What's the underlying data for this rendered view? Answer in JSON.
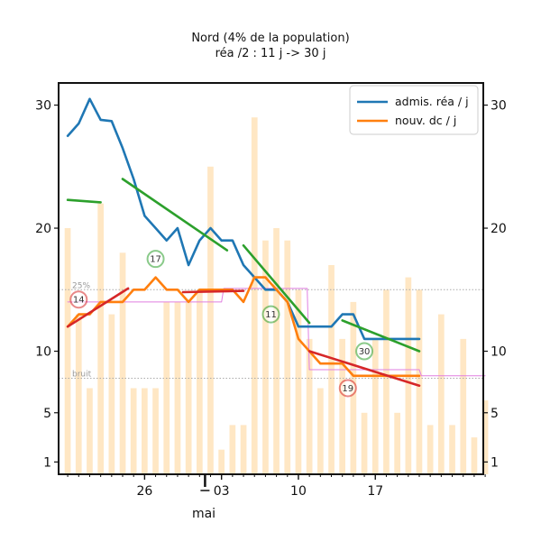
{
  "chart_data": {
    "type": "bar+line",
    "title": "Nord (4% de la population)",
    "subtitle": "réa /2 : 11 j -> 30 j",
    "xlabel": "mai",
    "x_day_range": [
      0,
      38
    ],
    "x_ticks": [
      {
        "day": 7,
        "label": "26"
      },
      {
        "day": 14,
        "label": "03"
      },
      {
        "day": 21,
        "label": "10"
      },
      {
        "day": 28,
        "label": "17"
      }
    ],
    "y_ticks": [
      {
        "value": 1,
        "label": "1"
      },
      {
        "value": 5,
        "label": "5"
      },
      {
        "value": 10,
        "label": "10"
      },
      {
        "value": 20,
        "label": "20"
      },
      {
        "value": 30,
        "label": "30"
      }
    ],
    "ylim": [
      0,
      31.8
    ],
    "bars": {
      "name": "daily values",
      "color": "#ffe7c4",
      "start_day": 0,
      "values": [
        20,
        13,
        7,
        22,
        13,
        18,
        7,
        7,
        7,
        14,
        14,
        14,
        15,
        25,
        2,
        4,
        4,
        29,
        19,
        20,
        19,
        15,
        11,
        7,
        17,
        11,
        14,
        5,
        11,
        15,
        5,
        16,
        15,
        4,
        13,
        4,
        11,
        3,
        6
      ]
    },
    "series": [
      {
        "name": "admis. réa / j",
        "color": "#1f77b4",
        "start_day": 0,
        "values": [
          27.5,
          28.5,
          30.5,
          28.8,
          28.7,
          26.5,
          24.0,
          21.0,
          20.0,
          19.0,
          20.0,
          17.0,
          19.0,
          20.0,
          19.0,
          19.0,
          17.0,
          16.0,
          15.0,
          15.0,
          14.0,
          12.0,
          12.0,
          12.0,
          12.0,
          13.0,
          13.0,
          11.0,
          11.0,
          11.0,
          11.0,
          11.0,
          11.0
        ]
      },
      {
        "name": "nouv. dc / j",
        "color": "#ff7f0e",
        "start_day": 0,
        "values": [
          12.0,
          13.0,
          13.0,
          14.0,
          14.0,
          14.0,
          15.0,
          15.0,
          16.0,
          15.0,
          15.0,
          14.0,
          15.0,
          15.0,
          15.0,
          15.0,
          14.0,
          16.0,
          16.0,
          15.0,
          14.0,
          11.0,
          10.0,
          9.0,
          9.0,
          9.0,
          8.0,
          8.0,
          8.0,
          8.0,
          8.0,
          8.0,
          8.0
        ]
      }
    ],
    "trends": [
      {
        "color": "#2ca02c",
        "points": [
          [
            0,
            22.3
          ],
          [
            3,
            22.1
          ]
        ]
      },
      {
        "color": "#2ca02c",
        "points": [
          [
            5,
            24.0
          ],
          [
            14.5,
            18.2
          ]
        ]
      },
      {
        "color": "#2ca02c",
        "points": [
          [
            16,
            18.6
          ],
          [
            22,
            12.3
          ]
        ]
      },
      {
        "color": "#2ca02c",
        "points": [
          [
            25,
            12.5
          ],
          [
            32,
            10.0
          ]
        ]
      },
      {
        "color": "#d62728",
        "points": [
          [
            0,
            12.0
          ],
          [
            5.5,
            15.1
          ]
        ]
      },
      {
        "color": "#d62728",
        "points": [
          [
            10.5,
            14.8
          ],
          [
            16,
            14.9
          ]
        ]
      },
      {
        "color": "#d62728",
        "points": [
          [
            22,
            10.0
          ],
          [
            32,
            7.2
          ]
        ]
      }
    ],
    "reference_lines": [
      {
        "label": "25%",
        "value": 15.0,
        "color": "#aaaaaa"
      },
      {
        "label": "bruit",
        "value": 7.8,
        "color": "#aaaaaa"
      }
    ],
    "magenta_step": {
      "color": "#e07fe0",
      "points": [
        [
          0,
          14.0
        ],
        [
          14,
          14.0
        ],
        [
          14.2,
          15.1
        ],
        [
          21.8,
          15.1
        ],
        [
          22,
          8.5
        ],
        [
          32,
          8.5
        ],
        [
          32.2,
          8.0
        ],
        [
          38,
          8.0
        ]
      ]
    },
    "annotations": [
      {
        "label": "17",
        "day": 8,
        "value": 17.5,
        "color": "#2ca02c"
      },
      {
        "label": "11",
        "day": 18.5,
        "value": 13.0,
        "color": "#2ca02c"
      },
      {
        "label": "30",
        "day": 27,
        "value": 10.0,
        "color": "#2ca02c"
      },
      {
        "label": "14",
        "day": 1,
        "value": 14.2,
        "color": "#d62728"
      },
      {
        "label": "19",
        "day": 25.5,
        "value": 7.0,
        "color": "#d62728"
      }
    ],
    "month_marker": {
      "day": 12.5,
      "label": "mai"
    },
    "legend": {
      "position": "top-right",
      "entries": [
        {
          "label": "admis. réa / j",
          "color": "#1f77b4"
        },
        {
          "label": "nouv. dc / j",
          "color": "#ff7f0e"
        }
      ]
    }
  }
}
